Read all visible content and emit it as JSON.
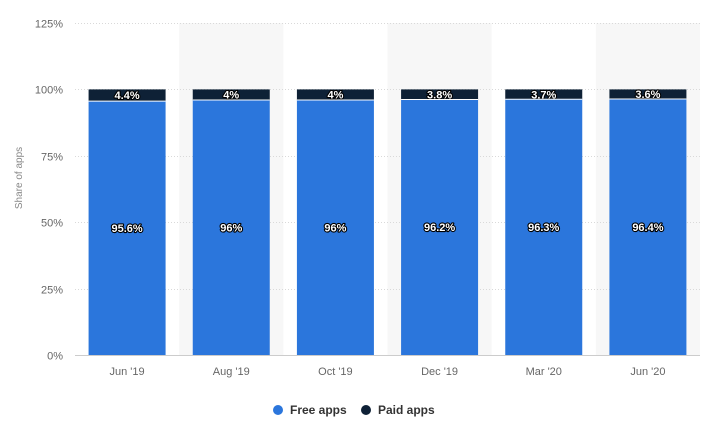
{
  "chart_data": {
    "type": "bar",
    "stacked": true,
    "categories": [
      "Jun '19",
      "Aug '19",
      "Oct '19",
      "Dec '19",
      "Mar '20",
      "Jun '20"
    ],
    "series": [
      {
        "name": "Free apps",
        "color": "#2b76dc",
        "values": [
          95.6,
          96,
          96,
          96.2,
          96.3,
          96.4
        ],
        "labels": [
          "95.6%",
          "96%",
          "96%",
          "96.2%",
          "96.3%",
          "96.4%"
        ]
      },
      {
        "name": "Paid apps",
        "color": "#0e2136",
        "values": [
          4.4,
          4,
          4,
          3.8,
          3.7,
          3.6
        ],
        "labels": [
          "4.4%",
          "4%",
          "4%",
          "3.8%",
          "3.7%",
          "3.6%"
        ]
      }
    ],
    "ylabel": "Share of apps",
    "ylim": [
      0,
      125
    ],
    "yticks": [
      0,
      25,
      50,
      75,
      100,
      125
    ],
    "ytick_labels": [
      "0%",
      "25%",
      "50%",
      "75%",
      "100%",
      "125%"
    ],
    "grid": true,
    "legend_position": "bottom-center"
  }
}
